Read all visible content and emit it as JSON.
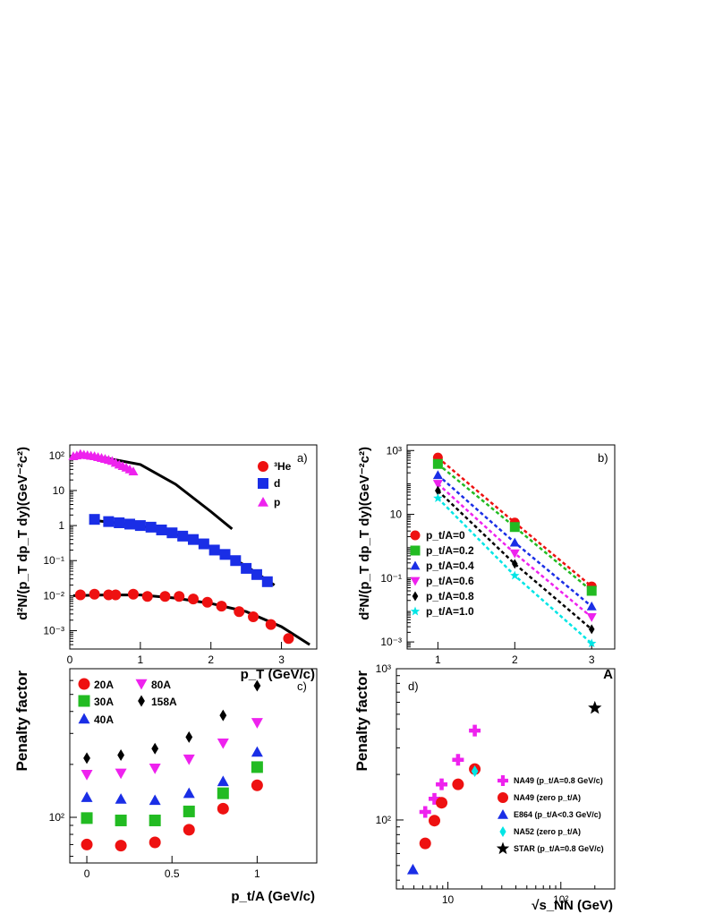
{
  "chart_data": [
    {
      "panel": "a)",
      "type": "scatter",
      "xlabel": "p_T (GeV/c)",
      "ylabel": "d²N/(p_T dp_T dy)(GeV⁻²c²)",
      "xlim": [
        0,
        3.5
      ],
      "ylim": [
        0.0003,
        200
      ],
      "yscale": "log",
      "xticks": [
        "0",
        "1",
        "2",
        "3"
      ],
      "yticks": [
        "10⁻³",
        "10⁻²",
        "10⁻¹",
        "1",
        "10",
        "10²"
      ],
      "legend": [
        "³He",
        "d",
        "p"
      ],
      "series": [
        {
          "name": "³He",
          "color": "#ee1111",
          "marker": "circle",
          "x": [
            0.15,
            0.35,
            0.55,
            0.65,
            0.9,
            1.1,
            1.35,
            1.55,
            1.75,
            1.95,
            2.15,
            2.4,
            2.6,
            2.85,
            3.1
          ],
          "y": [
            0.0105,
            0.011,
            0.0105,
            0.0105,
            0.011,
            0.0095,
            0.0095,
            0.0095,
            0.008,
            0.0065,
            0.005,
            0.0035,
            0.0025,
            0.0015,
            0.0006
          ]
        },
        {
          "name": "d",
          "color": "#1a2ee6",
          "marker": "square",
          "x": [
            0.35,
            0.55,
            0.7,
            0.85,
            1.0,
            1.15,
            1.3,
            1.45,
            1.6,
            1.75,
            1.9,
            2.05,
            2.2,
            2.35,
            2.5,
            2.65,
            2.8
          ],
          "y": [
            1.5,
            1.3,
            1.2,
            1.1,
            1.0,
            0.9,
            0.75,
            0.62,
            0.5,
            0.4,
            0.3,
            0.2,
            0.15,
            0.1,
            0.06,
            0.04,
            0.025
          ]
        },
        {
          "name": "p",
          "color": "#ee22ee",
          "marker": "triangle",
          "x": [
            0.05,
            0.1,
            0.15,
            0.2,
            0.25,
            0.3,
            0.35,
            0.4,
            0.45,
            0.5,
            0.55,
            0.6,
            0.65,
            0.7,
            0.75,
            0.8,
            0.85,
            0.9
          ],
          "y": [
            95,
            100,
            110,
            105,
            102,
            98,
            95,
            90,
            85,
            80,
            75,
            70,
            62,
            55,
            50,
            45,
            40,
            35
          ]
        }
      ],
      "fits": [
        {
          "x": [
            0.05,
            0.5,
            1.0,
            1.5,
            2.0,
            2.3
          ],
          "y": [
            95,
            85,
            55,
            15,
            2.5,
            0.8
          ]
        },
        {
          "x": [
            0.35,
            1.0,
            1.5,
            2.0,
            2.5,
            2.9
          ],
          "y": [
            1.4,
            1.0,
            0.55,
            0.25,
            0.07,
            0.02
          ]
        },
        {
          "x": [
            0.05,
            0.5,
            1.0,
            1.5,
            2.0,
            2.5,
            3.0,
            3.4
          ],
          "y": [
            0.01,
            0.0105,
            0.0105,
            0.0085,
            0.006,
            0.0035,
            0.0013,
            0.0004
          ]
        }
      ]
    },
    {
      "panel": "b)",
      "type": "scatter",
      "xlabel": "A",
      "ylabel": "d²N/(p_T dp_T dy)(GeV⁻²c²)",
      "xlim": [
        0.6,
        3.3
      ],
      "ylim": [
        0.0006,
        1500
      ],
      "yscale": "log",
      "xticks": [
        "1",
        "2",
        "3"
      ],
      "yticks": [
        "10⁻³",
        "10⁻¹",
        "10",
        "10³"
      ],
      "categories": [
        1,
        2,
        3
      ],
      "series": [
        {
          "name": "p_t/A=0",
          "color": "#ee1111",
          "marker": "circle",
          "values": [
            600,
            5.5,
            0.055
          ]
        },
        {
          "name": "p_t/A=0.2",
          "color": "#22bb22",
          "marker": "square",
          "values": [
            380,
            4.0,
            0.04
          ]
        },
        {
          "name": "p_t/A=0.4",
          "color": "#1a2ee6",
          "marker": "triangle",
          "values": [
            170,
            1.3,
            0.013
          ]
        },
        {
          "name": "p_t/A=0.6",
          "color": "#ee22ee",
          "marker": "triangle-down",
          "values": [
            90,
            0.6,
            0.006
          ]
        },
        {
          "name": "p_t/A=0.8",
          "color": "#000000",
          "marker": "diamond",
          "values": [
            55,
            0.28,
            0.0025
          ]
        },
        {
          "name": "p_t/A=1.0",
          "color": "#00e5e5",
          "marker": "star",
          "values": [
            32,
            0.12,
            0.0009
          ]
        }
      ]
    },
    {
      "panel": "c)",
      "type": "scatter",
      "xlabel": "p_t/A (GeV/c)",
      "ylabel": "Penalty factor",
      "xlim": [
        -0.1,
        1.35
      ],
      "ylim": [
        55,
        700
      ],
      "yscale": "log",
      "xticks": [
        "0",
        "0.5",
        "1"
      ],
      "yticks": [
        "10²"
      ],
      "categories": [
        0,
        0.2,
        0.4,
        0.6,
        0.8,
        1.0
      ],
      "series": [
        {
          "name": "20A",
          "color": "#ee1111",
          "marker": "circle",
          "values": [
            70,
            69,
            72,
            85,
            112,
            152
          ]
        },
        {
          "name": "30A",
          "color": "#22bb22",
          "marker": "square",
          "values": [
            99,
            96,
            96,
            108,
            137,
            193
          ]
        },
        {
          "name": "40A",
          "color": "#1a2ee6",
          "marker": "triangle",
          "values": [
            130,
            127,
            125,
            137,
            160,
            235
          ]
        },
        {
          "name": "80A",
          "color": "#ee22ee",
          "marker": "triangle-down",
          "values": [
            175,
            178,
            190,
            214,
            264,
            345
          ]
        },
        {
          "name": "158A",
          "color": "#000000",
          "marker": "diamond",
          "values": [
            217,
            226,
            246,
            286,
            380,
            560
          ]
        }
      ]
    },
    {
      "panel": "d)",
      "type": "scatter",
      "xlabel": "√s_NN (GeV)",
      "ylabel": "Penalty factor",
      "xlim": [
        3.5,
        300
      ],
      "ylim": [
        35,
        1000
      ],
      "xscale": "log",
      "yscale": "log",
      "xticks": [
        "10",
        "10²"
      ],
      "yticks": [
        "10²",
        "10³"
      ],
      "series": [
        {
          "name": "NA49 (p_t/A=0.8 GeV/c)",
          "color": "#ee22ee",
          "marker": "cross",
          "x": [
            6.3,
            7.6,
            8.8,
            12.3,
            17.3
          ],
          "y": [
            113,
            138,
            172,
            250,
            390
          ]
        },
        {
          "name": "NA49 (zero p_t/A)",
          "color": "#ee1111",
          "marker": "circle",
          "x": [
            6.3,
            7.6,
            8.8,
            12.3,
            17.3
          ],
          "y": [
            70,
            99,
            130,
            172,
            217
          ]
        },
        {
          "name": "E864 (p_t/A<0.3 GeV/c)",
          "color": "#1a2ee6",
          "marker": "triangle",
          "x": [
            4.9
          ],
          "y": [
            47
          ]
        },
        {
          "name": "NA52 (zero p_t/A)",
          "color": "#00e5e5",
          "marker": "diamond",
          "x": [
            17.3
          ],
          "y": [
            210
          ]
        },
        {
          "name": "STAR (p_t/A=0.8 GeV/c)",
          "color": "#000000",
          "marker": "star",
          "x": [
            200
          ],
          "y": [
            550
          ]
        }
      ]
    }
  ]
}
